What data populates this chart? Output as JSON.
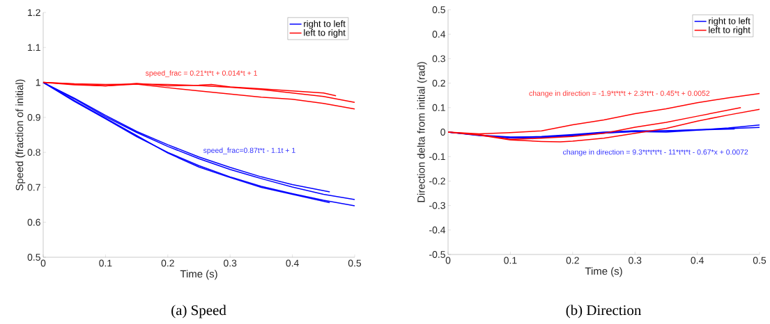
{
  "chart_data": [
    {
      "type": "line",
      "title": "(a) Speed",
      "xlabel": "Time (s)",
      "ylabel": "Speed (fraction of initial)",
      "xlim": [
        0,
        0.5
      ],
      "ylim": [
        0.5,
        1.2
      ],
      "xticks": [
        0,
        0.1,
        0.2,
        0.3,
        0.4,
        0.5
      ],
      "yticks": [
        0.5,
        0.6,
        0.7,
        0.8,
        0.9,
        1,
        1.1,
        1.2
      ],
      "legend": "top right",
      "annotations": [
        "speed_frac = 0.21*t*t + 0.014*t + 1",
        "speed_frac=0.87t*t - 1.1t + 1"
      ],
      "series": [
        {
          "name": "right to left",
          "color": "#0000ff",
          "x": [
            0,
            0.05,
            0.1,
            0.15,
            0.2,
            0.25,
            0.3,
            0.35,
            0.4,
            0.46
          ],
          "values": [
            1,
            0.955,
            0.906,
            0.86,
            0.822,
            0.787,
            0.757,
            0.73,
            0.708,
            0.687
          ]
        },
        {
          "name": "left to right",
          "color": "#ff0000",
          "x": [
            0,
            0.05,
            0.1,
            0.15,
            0.2,
            0.25,
            0.27,
            0.3,
            0.35,
            0.4,
            0.45,
            0.47
          ],
          "values": [
            1,
            0.995,
            0.99,
            0.997,
            0.99,
            0.992,
            0.994,
            0.987,
            0.982,
            0.976,
            0.97,
            0.962
          ]
        },
        {
          "color": "#0000ff",
          "x": [
            0,
            0.05,
            0.1,
            0.15,
            0.2,
            0.25,
            0.3,
            0.35,
            0.4,
            0.45,
            0.5
          ],
          "values": [
            1,
            0.953,
            0.902,
            0.857,
            0.817,
            0.782,
            0.751,
            0.725,
            0.701,
            0.68,
            0.665
          ]
        },
        {
          "color": "#0000ff",
          "x": [
            0,
            0.05,
            0.1,
            0.15,
            0.2,
            0.25,
            0.3,
            0.35,
            0.4,
            0.46
          ],
          "values": [
            1,
            0.948,
            0.898,
            0.848,
            0.798,
            0.758,
            0.728,
            0.7,
            0.68,
            0.656
          ]
        },
        {
          "color": "#0000ff",
          "x": [
            0,
            0.05,
            0.1,
            0.15,
            0.2,
            0.25,
            0.3,
            0.35,
            0.4,
            0.45,
            0.5
          ],
          "values": [
            1,
            0.946,
            0.896,
            0.845,
            0.8,
            0.762,
            0.73,
            0.703,
            0.682,
            0.663,
            0.647
          ]
        },
        {
          "color": "#ff0000",
          "x": [
            0,
            0.05,
            0.1,
            0.15,
            0.2,
            0.25,
            0.3,
            0.35,
            0.4,
            0.45,
            0.5
          ],
          "values": [
            1,
            0.996,
            0.994,
            0.995,
            0.994,
            0.991,
            0.986,
            0.98,
            0.97,
            0.96,
            0.943
          ]
        },
        {
          "color": "#ff0000",
          "x": [
            0,
            0.05,
            0.1,
            0.15,
            0.2,
            0.25,
            0.3,
            0.35,
            0.4,
            0.45,
            0.5
          ],
          "values": [
            1,
            0.993,
            0.99,
            0.995,
            0.985,
            0.976,
            0.967,
            0.958,
            0.952,
            0.94,
            0.924
          ]
        }
      ]
    },
    {
      "type": "line",
      "title": "(b) Direction",
      "xlabel": "Time (s)",
      "ylabel": "Direction delta from initial (rad)",
      "xlim": [
        0,
        0.5
      ],
      "ylim": [
        -0.5,
        0.5
      ],
      "xticks": [
        0,
        0.1,
        0.2,
        0.3,
        0.4,
        0.5
      ],
      "yticks": [
        -0.5,
        -0.4,
        -0.3,
        -0.2,
        -0.1,
        0,
        0.1,
        0.2,
        0.3,
        0.4,
        0.5
      ],
      "legend": "top right",
      "annotations": [
        "change in direction = -1.9*t*t*t + 2.3*t*t - 0.45*t + 0.0052",
        "change in direction = 9.3*t*t*t*t - 11*t*t*t - 0.67*x + 0.0072"
      ],
      "series": [
        {
          "name": "right to left",
          "color": "#0000ff",
          "x": [
            0,
            0.05,
            0.1,
            0.15,
            0.2,
            0.25,
            0.3,
            0.35,
            0.4,
            0.46
          ],
          "values": [
            0,
            -0.012,
            -0.02,
            -0.02,
            -0.013,
            -0.003,
            0.003,
            0.006,
            0.009,
            0.013
          ]
        },
        {
          "name": "left to right",
          "color": "#ff0000",
          "x": [
            0,
            0.05,
            0.1,
            0.15,
            0.2,
            0.25,
            0.3,
            0.35,
            0.4,
            0.45,
            0.5
          ],
          "values": [
            0,
            -0.007,
            -0.002,
            0.005,
            0.03,
            0.05,
            0.075,
            0.095,
            0.12,
            0.14,
            0.158
          ]
        },
        {
          "color": "#0000ff",
          "x": [
            0,
            0.05,
            0.1,
            0.15,
            0.2,
            0.25,
            0.3,
            0.35,
            0.4,
            0.45,
            0.5
          ],
          "values": [
            0,
            -0.014,
            -0.022,
            -0.018,
            -0.01,
            0.0,
            0.006,
            0.004,
            0.01,
            0.014,
            0.019
          ]
        },
        {
          "color": "#0000ff",
          "x": [
            0,
            0.05,
            0.1,
            0.15,
            0.2,
            0.25,
            0.3,
            0.35,
            0.4,
            0.45,
            0.5
          ],
          "values": [
            0,
            -0.013,
            -0.024,
            -0.022,
            -0.015,
            -0.004,
            0.002,
            0.0,
            0.008,
            0.017,
            0.029
          ]
        },
        {
          "color": "#ff0000",
          "x": [
            0,
            0.05,
            0.1,
            0.15,
            0.2,
            0.25,
            0.3,
            0.35,
            0.4,
            0.47
          ],
          "values": [
            0,
            -0.01,
            -0.03,
            -0.025,
            -0.018,
            -0.005,
            0.02,
            0.04,
            0.065,
            0.1
          ]
        },
        {
          "color": "#ff0000",
          "x": [
            0,
            0.05,
            0.1,
            0.15,
            0.18,
            0.2,
            0.25,
            0.3,
            0.35,
            0.4,
            0.45,
            0.5
          ],
          "values": [
            0,
            -0.012,
            -0.032,
            -0.038,
            -0.04,
            -0.037,
            -0.025,
            -0.005,
            0.015,
            0.045,
            0.07,
            0.093
          ]
        }
      ]
    }
  ]
}
